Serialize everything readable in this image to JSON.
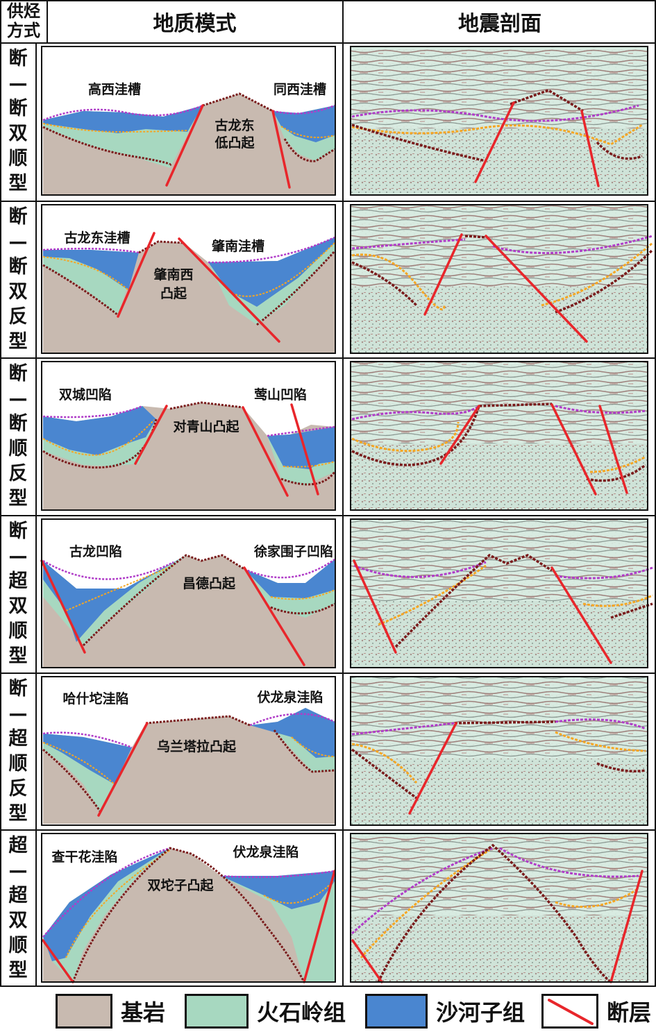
{
  "header": {
    "corner": "供烃方式",
    "corner_line1": "供烃",
    "corner_line2": "方式",
    "col_geo": "地质模式",
    "col_seismic": "地震剖面"
  },
  "rows": [
    {
      "type_chars": [
        "断",
        "—",
        "断",
        "双",
        "顺",
        "型"
      ],
      "labels": [
        "高西洼槽",
        "同西洼槽",
        "古龙东",
        "低凸起"
      ]
    },
    {
      "type_chars": [
        "断",
        "—",
        "断",
        "双",
        "反",
        "型"
      ],
      "labels": [
        "古龙东洼槽",
        "肇南洼槽",
        "肇南西",
        "凸起"
      ]
    },
    {
      "type_chars": [
        "断",
        "—",
        "断",
        "顺",
        "反",
        "型"
      ],
      "labels": [
        "双城凹陷",
        "莺山凹陷",
        "对青山凸起"
      ]
    },
    {
      "type_chars": [
        "断",
        "—",
        "超",
        "双",
        "顺",
        "型"
      ],
      "labels": [
        "古龙凹陷",
        "徐家围子凹陷",
        "昌德凸起"
      ]
    },
    {
      "type_chars": [
        "断",
        "—",
        "超",
        "顺",
        "反",
        "型"
      ],
      "labels": [
        "哈什坨洼陷",
        "伏龙泉洼陷",
        "乌兰塔拉凸起"
      ]
    },
    {
      "type_chars": [
        "超",
        "—",
        "超",
        "双",
        "顺",
        "型"
      ],
      "labels": [
        "查干花洼陷",
        "伏龙泉洼陷",
        "双坨子凸起"
      ]
    }
  ],
  "legend": [
    {
      "label": "基岩",
      "color": "#c8bab0"
    },
    {
      "label": "火石岭组",
      "color": "#a7d8c0"
    },
    {
      "label": "沙河子组",
      "color": "#4a86d0"
    },
    {
      "label": "断层",
      "color": "#e8262b"
    }
  ],
  "colors": {
    "basement": "#c8bab0",
    "huoshiling": "#a7d8c0",
    "shahezi": "#4a86d0",
    "fault": "#e8262b",
    "top_shahezi_line": "#b03cc8",
    "top_huoshiling_line": "#f5a623",
    "basement_line": "#7a1c1c",
    "seismic_bg": "#d9ece2"
  }
}
